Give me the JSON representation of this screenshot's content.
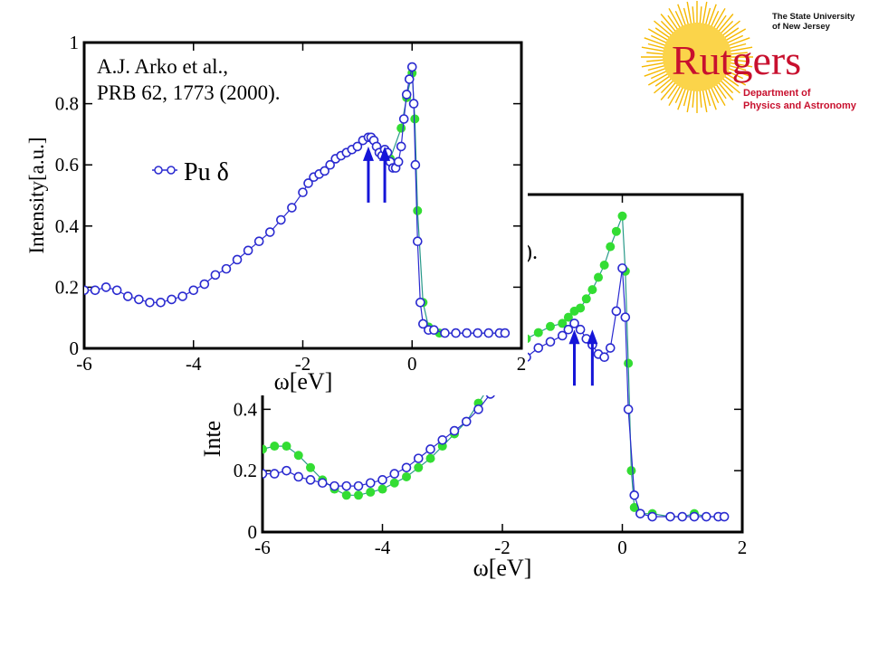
{
  "logo": {
    "university_line1": "The State University",
    "university_line2": "of New Jersey",
    "wordmark": "Rutgers",
    "department_line1": "Department of",
    "department_line2": "Physics and Astronomy",
    "brand_color": "#c8102e",
    "sun_color": "#f5b800"
  },
  "chart_data": [
    {
      "type": "scatter",
      "panel": "front",
      "annotation_line1": "A.J. Arko et al.,",
      "annotation_line2": "PRB 62, 1773 (2000).",
      "xlabel": "ω[eV]",
      "ylabel": "Intensity[a.u.]",
      "xlim": [
        -6,
        2
      ],
      "ylim": [
        0,
        1
      ],
      "xticks": [
        "-6",
        "-4",
        "-2",
        "0",
        "2"
      ],
      "yticks": [
        "0",
        "0.2",
        "0.4",
        "0.6",
        "0.8",
        "1"
      ],
      "legend": {
        "label": "Pu δ",
        "placement": "left-middle"
      },
      "arrow_x": [
        -0.8,
        -0.5
      ],
      "series": [
        {
          "name": "Pu δ",
          "color": "#2a2ad0",
          "marker": "open-circle",
          "x": [
            -6.0,
            -5.8,
            -5.6,
            -5.4,
            -5.2,
            -5.0,
            -4.8,
            -4.6,
            -4.4,
            -4.2,
            -4.0,
            -3.8,
            -3.6,
            -3.4,
            -3.2,
            -3.0,
            -2.8,
            -2.6,
            -2.4,
            -2.2,
            -2.0,
            -1.9,
            -1.8,
            -1.7,
            -1.6,
            -1.5,
            -1.4,
            -1.3,
            -1.2,
            -1.1,
            -1.0,
            -0.9,
            -0.8,
            -0.75,
            -0.7,
            -0.65,
            -0.6,
            -0.55,
            -0.5,
            -0.45,
            -0.4,
            -0.35,
            -0.3,
            -0.25,
            -0.2,
            -0.15,
            -0.1,
            -0.05,
            0.0,
            0.03,
            0.06,
            0.1,
            0.15,
            0.2,
            0.3,
            0.4,
            0.6,
            0.8,
            1.0,
            1.2,
            1.4,
            1.6,
            1.7
          ],
          "y": [
            0.19,
            0.19,
            0.2,
            0.19,
            0.17,
            0.16,
            0.15,
            0.15,
            0.16,
            0.17,
            0.19,
            0.21,
            0.24,
            0.26,
            0.29,
            0.32,
            0.35,
            0.38,
            0.42,
            0.46,
            0.51,
            0.54,
            0.56,
            0.57,
            0.58,
            0.6,
            0.62,
            0.63,
            0.64,
            0.65,
            0.66,
            0.68,
            0.69,
            0.69,
            0.68,
            0.66,
            0.64,
            0.63,
            0.65,
            0.64,
            0.61,
            0.59,
            0.59,
            0.61,
            0.66,
            0.75,
            0.83,
            0.88,
            0.92,
            0.8,
            0.6,
            0.35,
            0.15,
            0.08,
            0.06,
            0.06,
            0.05,
            0.05,
            0.05,
            0.05,
            0.05,
            0.05,
            0.05
          ]
        },
        {
          "name": "",
          "color": "#33dd33",
          "marker": "filled-circle",
          "x": [
            -0.6,
            -0.4,
            -0.2,
            -0.1,
            0.0,
            0.05,
            0.1,
            0.2,
            0.3,
            0.5,
            0.8,
            1.0,
            1.2,
            1.4,
            1.6
          ],
          "y": [
            0.64,
            0.62,
            0.72,
            0.82,
            0.9,
            0.75,
            0.45,
            0.15,
            0.07,
            0.05,
            0.05,
            0.05,
            0.05,
            0.05,
            0.05
          ]
        }
      ]
    },
    {
      "type": "scatter",
      "panel": "back",
      "annotation_visible_fragment": ").",
      "xlabel": "ω[eV]",
      "ylabel_fragment": "Inte",
      "xlim": [
        -6,
        2
      ],
      "ylim": [
        0,
        1.1
      ],
      "xticks": [
        "-6",
        "-4",
        "-2",
        "0",
        "2"
      ],
      "yticks": [
        "0",
        "0.2",
        "0.4"
      ],
      "arrow_x": [
        -0.8,
        -0.5
      ],
      "series": [
        {
          "name": "",
          "color": "#2a2ad0",
          "marker": "open-circle",
          "x": [
            -6.0,
            -5.8,
            -5.6,
            -5.4,
            -5.2,
            -5.0,
            -4.8,
            -4.6,
            -4.4,
            -4.2,
            -4.0,
            -3.8,
            -3.6,
            -3.4,
            -3.2,
            -3.0,
            -2.8,
            -2.6,
            -2.4,
            -2.2,
            -2.0,
            -1.8,
            -1.6,
            -1.4,
            -1.2,
            -1.0,
            -0.9,
            -0.8,
            -0.7,
            -0.6,
            -0.5,
            -0.4,
            -0.3,
            -0.2,
            -0.1,
            0.0,
            0.05,
            0.1,
            0.2,
            0.3,
            0.5,
            0.8,
            1.0,
            1.2,
            1.4,
            1.6,
            1.7
          ],
          "y": [
            0.19,
            0.19,
            0.2,
            0.18,
            0.17,
            0.16,
            0.15,
            0.15,
            0.15,
            0.16,
            0.17,
            0.19,
            0.21,
            0.24,
            0.27,
            0.3,
            0.33,
            0.36,
            0.4,
            0.45,
            0.51,
            0.55,
            0.57,
            0.6,
            0.62,
            0.64,
            0.66,
            0.68,
            0.66,
            0.63,
            0.61,
            0.58,
            0.57,
            0.6,
            0.72,
            0.86,
            0.7,
            0.4,
            0.12,
            0.06,
            0.05,
            0.05,
            0.05,
            0.05,
            0.05,
            0.05,
            0.05
          ]
        },
        {
          "name": "",
          "color": "#33dd33",
          "marker": "filled-circle",
          "x": [
            -6.0,
            -5.8,
            -5.6,
            -5.4,
            -5.2,
            -5.0,
            -4.8,
            -4.6,
            -4.4,
            -4.2,
            -4.0,
            -3.8,
            -3.6,
            -3.4,
            -3.2,
            -3.0,
            -2.8,
            -2.6,
            -2.4,
            -2.2,
            -2.0,
            -1.8,
            -1.6,
            -1.4,
            -1.2,
            -1.0,
            -0.9,
            -0.8,
            -0.7,
            -0.6,
            -0.5,
            -0.4,
            -0.3,
            -0.2,
            -0.1,
            0.0,
            0.05,
            0.1,
            0.15,
            0.2,
            0.3,
            0.5,
            0.8,
            1.0,
            1.2,
            1.4,
            1.6
          ],
          "y": [
            0.27,
            0.28,
            0.28,
            0.25,
            0.21,
            0.17,
            0.14,
            0.12,
            0.12,
            0.13,
            0.14,
            0.16,
            0.18,
            0.21,
            0.24,
            0.28,
            0.32,
            0.36,
            0.42,
            0.48,
            0.55,
            0.6,
            0.63,
            0.65,
            0.67,
            0.68,
            0.7,
            0.72,
            0.73,
            0.76,
            0.79,
            0.83,
            0.87,
            0.93,
            0.98,
            1.03,
            0.85,
            0.55,
            0.2,
            0.08,
            0.06,
            0.06,
            0.05,
            0.05,
            0.06,
            0.05,
            0.05
          ]
        }
      ]
    }
  ]
}
